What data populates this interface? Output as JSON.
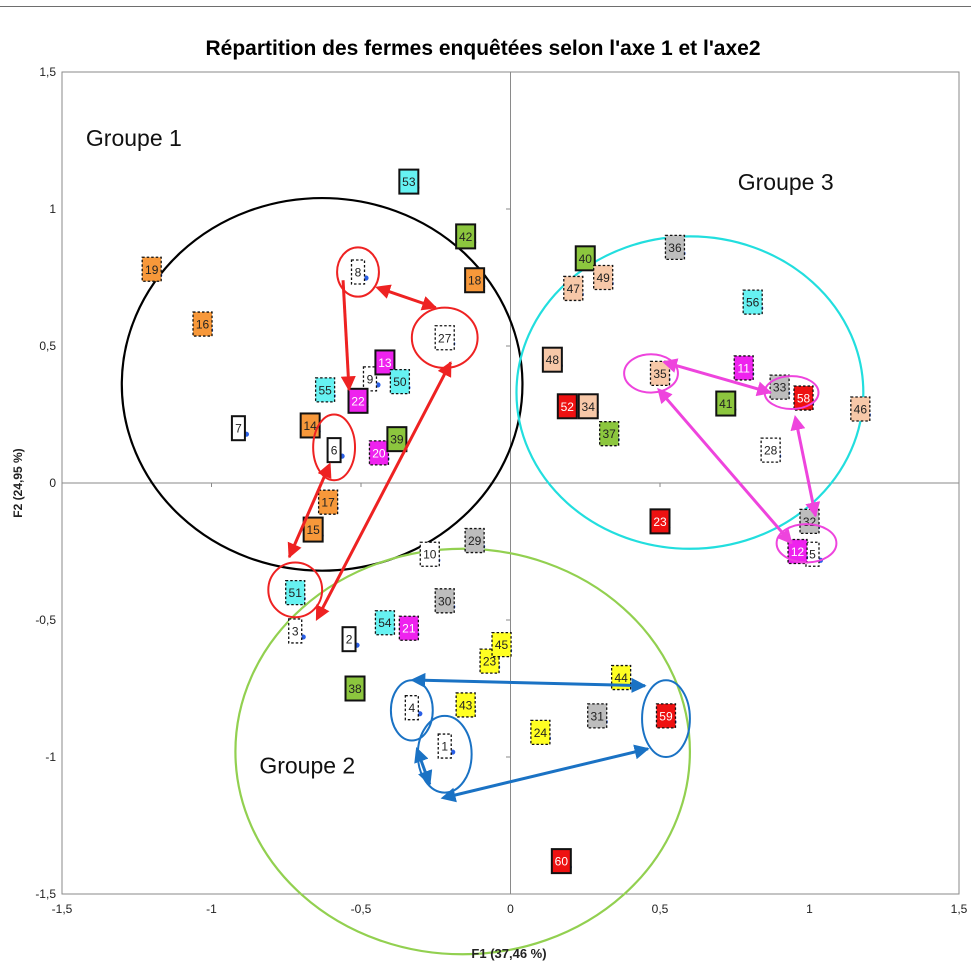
{
  "chart_data": {
    "type": "scatter",
    "title": "Répartition des fermes enquêtées selon l'axe 1 et l'axe2",
    "xlabel": "F1 (37,46 %)",
    "ylabel": "F2 (24,95 %)",
    "xlim": [
      -1.5,
      1.5
    ],
    "ylim": [
      -1.5,
      1.5
    ],
    "x_ticks": [
      "-1,5",
      "-1",
      "-0,5",
      "0",
      "0,5",
      "1",
      "1,5"
    ],
    "y_ticks": [
      "1,5",
      "1",
      "0,5",
      "0",
      "-0,5",
      "-1",
      "-1,5"
    ],
    "x_tick_values": [
      -1.5,
      -1,
      -0.5,
      0,
      0.5,
      1,
      1.5
    ],
    "y_tick_values": [
      1.5,
      1,
      0.5,
      0,
      -0.5,
      -1,
      -1.5
    ],
    "colors": {
      "orange": "#f7983a",
      "cyan": "#66f2f2",
      "magenta": "#ee22ee",
      "green": "#8cc63e",
      "grey": "#bdbdbd",
      "salmon": "#f7c8a8",
      "red": "#ee1111",
      "yellow": "#ffff22",
      "white": "#ffffff",
      "point": "#2a5fe6",
      "group1": "#000000",
      "group2": "#92d050",
      "group3": "#22dede",
      "red_arrow": "#ee2222",
      "blue_arrow": "#1a72c4",
      "pink_arrow": "#ee44dd"
    },
    "points": [
      {
        "label": "1",
        "x": -0.22,
        "y": -0.96,
        "color": "white",
        "dashed": true
      },
      {
        "label": "2",
        "x": -0.54,
        "y": -0.57,
        "color": "white",
        "dashed": false
      },
      {
        "label": "3",
        "x": -0.72,
        "y": -0.54,
        "color": "white",
        "dashed": true
      },
      {
        "label": "4",
        "x": -0.33,
        "y": -0.82,
        "color": "white",
        "dashed": true
      },
      {
        "label": "5",
        "x": 1.01,
        "y": -0.26,
        "color": "white",
        "dashed": true
      },
      {
        "label": "6",
        "x": -0.59,
        "y": 0.12,
        "color": "white",
        "dashed": false
      },
      {
        "label": "7",
        "x": -0.91,
        "y": 0.2,
        "color": "white",
        "dashed": false
      },
      {
        "label": "8",
        "x": -0.51,
        "y": 0.77,
        "color": "white",
        "dashed": true
      },
      {
        "label": "9",
        "x": -0.47,
        "y": 0.38,
        "color": "white",
        "dashed": true
      },
      {
        "label": "10",
        "x": -0.27,
        "y": -0.26,
        "color": "white",
        "dashed": true
      },
      {
        "label": "11",
        "x": 0.78,
        "y": 0.42,
        "color": "magenta",
        "dashed": true
      },
      {
        "label": "12",
        "x": 0.96,
        "y": -0.25,
        "color": "magenta",
        "dashed": true
      },
      {
        "label": "13",
        "x": -0.42,
        "y": 0.44,
        "color": "magenta",
        "dashed": false
      },
      {
        "label": "14",
        "x": -0.67,
        "y": 0.21,
        "color": "orange",
        "dashed": false
      },
      {
        "label": "15",
        "x": -0.66,
        "y": -0.17,
        "color": "orange",
        "dashed": false
      },
      {
        "label": "16",
        "x": -1.03,
        "y": 0.58,
        "color": "orange",
        "dashed": true
      },
      {
        "label": "17",
        "x": -0.61,
        "y": -0.07,
        "color": "orange",
        "dashed": true
      },
      {
        "label": "18",
        "x": -0.12,
        "y": 0.74,
        "color": "orange",
        "dashed": false
      },
      {
        "label": "19",
        "x": -1.2,
        "y": 0.78,
        "color": "orange",
        "dashed": true
      },
      {
        "label": "20",
        "x": -0.44,
        "y": 0.11,
        "color": "magenta",
        "dashed": true
      },
      {
        "label": "21",
        "x": -0.34,
        "y": -0.53,
        "color": "magenta",
        "dashed": true
      },
      {
        "label": "22",
        "x": -0.51,
        "y": 0.3,
        "color": "magenta",
        "dashed": false
      },
      {
        "label": "23",
        "x": -0.07,
        "y": -0.65,
        "color": "yellow",
        "dashed": true
      },
      {
        "label": "23",
        "x": 0.5,
        "y": -0.14,
        "color": "red",
        "dashed": false
      },
      {
        "label": "24",
        "x": 0.1,
        "y": -0.91,
        "color": "yellow",
        "dashed": true
      },
      {
        "label": "27",
        "x": -0.22,
        "y": 0.53,
        "color": "white",
        "dashed": true
      },
      {
        "label": "28",
        "x": 0.87,
        "y": 0.12,
        "color": "white",
        "dashed": true
      },
      {
        "label": "29",
        "x": -0.12,
        "y": -0.21,
        "color": "grey",
        "dashed": true
      },
      {
        "label": "30",
        "x": -0.22,
        "y": -0.43,
        "color": "grey",
        "dashed": true
      },
      {
        "label": "31",
        "x": 0.29,
        "y": -0.85,
        "color": "grey",
        "dashed": true
      },
      {
        "label": "32",
        "x": 1.0,
        "y": -0.14,
        "color": "grey",
        "dashed": true
      },
      {
        "label": "33",
        "x": 0.9,
        "y": 0.35,
        "color": "grey",
        "dashed": true
      },
      {
        "label": "34",
        "x": 0.26,
        "y": 0.28,
        "color": "salmon",
        "dashed": false
      },
      {
        "label": "35",
        "x": 0.5,
        "y": 0.4,
        "color": "salmon",
        "dashed": true
      },
      {
        "label": "36",
        "x": 0.55,
        "y": 0.86,
        "color": "grey",
        "dashed": true
      },
      {
        "label": "37",
        "x": 0.33,
        "y": 0.18,
        "color": "green",
        "dashed": true
      },
      {
        "label": "38",
        "x": -0.52,
        "y": -0.75,
        "color": "green",
        "dashed": false
      },
      {
        "label": "39",
        "x": -0.38,
        "y": 0.16,
        "color": "green",
        "dashed": false
      },
      {
        "label": "40",
        "x": 0.25,
        "y": 0.82,
        "color": "green",
        "dashed": false
      },
      {
        "label": "41",
        "x": 0.72,
        "y": 0.29,
        "color": "green",
        "dashed": false
      },
      {
        "label": "42",
        "x": -0.15,
        "y": 0.9,
        "color": "green",
        "dashed": false
      },
      {
        "label": "43",
        "x": -0.15,
        "y": -0.81,
        "color": "yellow",
        "dashed": true
      },
      {
        "label": "44",
        "x": 0.37,
        "y": -0.71,
        "color": "yellow",
        "dashed": true
      },
      {
        "label": "45",
        "x": -0.03,
        "y": -0.59,
        "color": "yellow",
        "dashed": true
      },
      {
        "label": "46",
        "x": 1.17,
        "y": 0.27,
        "color": "salmon",
        "dashed": true
      },
      {
        "label": "47",
        "x": 0.21,
        "y": 0.71,
        "color": "salmon",
        "dashed": true
      },
      {
        "label": "48",
        "x": 0.14,
        "y": 0.45,
        "color": "salmon",
        "dashed": false
      },
      {
        "label": "49",
        "x": 0.31,
        "y": 0.75,
        "color": "salmon",
        "dashed": true
      },
      {
        "label": "50",
        "x": -0.37,
        "y": 0.37,
        "color": "cyan",
        "dashed": true
      },
      {
        "label": "51",
        "x": -0.72,
        "y": -0.4,
        "color": "cyan",
        "dashed": true
      },
      {
        "label": "52",
        "x": 0.19,
        "y": 0.28,
        "color": "red",
        "dashed": false
      },
      {
        "label": "53",
        "x": -0.34,
        "y": 1.1,
        "color": "cyan",
        "dashed": false
      },
      {
        "label": "54",
        "x": -0.42,
        "y": -0.51,
        "color": "cyan",
        "dashed": true
      },
      {
        "label": "55",
        "x": -0.62,
        "y": 0.34,
        "color": "cyan",
        "dashed": true
      },
      {
        "label": "56",
        "x": 0.81,
        "y": 0.66,
        "color": "cyan",
        "dashed": true
      },
      {
        "label": "58",
        "x": 0.98,
        "y": 0.31,
        "color": "red",
        "dashed": true
      },
      {
        "label": "59",
        "x": 0.52,
        "y": -0.85,
        "color": "red",
        "dashed": true
      },
      {
        "label": "60",
        "x": 0.17,
        "y": -1.38,
        "color": "red",
        "dashed": false
      }
    ],
    "groups": [
      {
        "label": "Groupe 1",
        "color": "group1",
        "cx": -0.63,
        "cy": 0.36,
        "rx": 0.67,
        "ry": 0.68
      },
      {
        "label": "Groupe 2",
        "color": "group2",
        "cx": -0.16,
        "cy": -0.98,
        "rx": 0.76,
        "ry": 0.74
      },
      {
        "label": "Groupe 3",
        "color": "group3",
        "cx": 0.6,
        "cy": 0.33,
        "rx": 0.58,
        "ry": 0.57
      }
    ],
    "group_labels": [
      {
        "text": "Groupe 1",
        "x": -1.42,
        "y": 1.23
      },
      {
        "text": "Groupe 2",
        "x": -0.84,
        "y": -1.06
      },
      {
        "text": "Groupe 3",
        "x": 0.76,
        "y": 1.07
      }
    ],
    "highlight_ellipses": [
      {
        "color": "red_arrow",
        "cx": -0.51,
        "cy": 0.77,
        "rx": 0.07,
        "ry": 0.09
      },
      {
        "color": "red_arrow",
        "cx": -0.22,
        "cy": 0.53,
        "rx": 0.11,
        "ry": 0.11
      },
      {
        "color": "red_arrow",
        "cx": -0.59,
        "cy": 0.13,
        "rx": 0.07,
        "ry": 0.12
      },
      {
        "color": "red_arrow",
        "cx": -0.72,
        "cy": -0.39,
        "rx": 0.09,
        "ry": 0.1
      },
      {
        "color": "blue_arrow",
        "cx": -0.33,
        "cy": -0.83,
        "rx": 0.07,
        "ry": 0.11
      },
      {
        "color": "blue_arrow",
        "cx": -0.22,
        "cy": -0.99,
        "rx": 0.09,
        "ry": 0.14
      },
      {
        "color": "blue_arrow",
        "cx": 0.52,
        "cy": -0.86,
        "rx": 0.08,
        "ry": 0.14
      },
      {
        "color": "pink_arrow",
        "cx": 0.47,
        "cy": 0.4,
        "rx": 0.09,
        "ry": 0.07
      },
      {
        "color": "pink_arrow",
        "cx": 0.94,
        "cy": 0.33,
        "rx": 0.09,
        "ry": 0.06
      },
      {
        "color": "pink_arrow",
        "cx": 0.99,
        "cy": -0.22,
        "rx": 0.1,
        "ry": 0.07
      }
    ],
    "arrows": [
      {
        "color": "red_arrow",
        "x1": -0.56,
        "y1": 0.74,
        "x2": -0.54,
        "y2": 0.34,
        "head_start": false,
        "head_end": true
      },
      {
        "color": "red_arrow",
        "x1": -0.41,
        "y1": 0.7,
        "x2": -0.25,
        "y2": 0.64,
        "head_start": true,
        "head_end": true
      },
      {
        "color": "red_arrow",
        "x1": -0.62,
        "y1": 0.03,
        "x2": -0.74,
        "y2": -0.27,
        "head_start": true,
        "head_end": true
      },
      {
        "color": "red_arrow",
        "x1": -0.63,
        "y1": -0.46,
        "x2": -0.2,
        "y2": 0.44,
        "head_start": true,
        "head_end": true
      },
      {
        "color": "blue_arrow",
        "x1": -0.29,
        "y1": -0.72,
        "x2": 0.45,
        "y2": -0.74,
        "head_start": true,
        "head_end": true
      },
      {
        "color": "blue_arrow",
        "x1": -0.3,
        "y1": -1.01,
        "x2": -0.27,
        "y2": -1.1,
        "head_start": true,
        "head_end": true
      },
      {
        "color": "blue_arrow",
        "x1": -0.19,
        "y1": -1.14,
        "x2": 0.46,
        "y2": -0.97,
        "head_start": true,
        "head_end": true
      },
      {
        "color": "pink_arrow",
        "x1": 0.55,
        "y1": 0.43,
        "x2": 0.87,
        "y2": 0.33,
        "head_start": true,
        "head_end": true
      },
      {
        "color": "pink_arrow",
        "x1": 0.52,
        "y1": 0.31,
        "x2": 0.94,
        "y2": -0.22,
        "head_start": true,
        "head_end": true
      },
      {
        "color": "pink_arrow",
        "x1": 0.96,
        "y1": 0.2,
        "x2": 1.02,
        "y2": -0.12,
        "head_start": true,
        "head_end": true
      }
    ]
  }
}
